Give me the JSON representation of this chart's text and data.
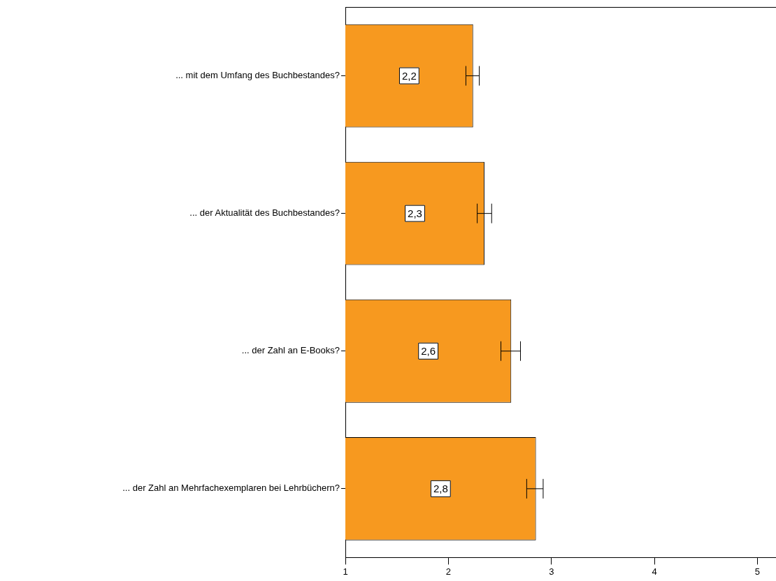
{
  "chart_data": {
    "type": "bar",
    "orientation": "horizontal",
    "categories": [
      "... mit dem Umfang des Buchbestandes?",
      "... der Aktualität des Buchbestandes?",
      "... der Zahl an E-Books?",
      "... der Zahl an Mehrfachexemplaren bei Lehrbüchern?"
    ],
    "values": [
      2.24,
      2.35,
      2.61,
      2.85
    ],
    "value_labels": [
      "2,2",
      "2,3",
      "2,6",
      "2,8"
    ],
    "errors": [
      [
        2.17,
        2.3
      ],
      [
        2.28,
        2.42
      ],
      [
        2.51,
        2.7
      ],
      [
        2.76,
        2.92
      ]
    ],
    "color": "#f7991f",
    "xlim": [
      1,
      5.18
    ],
    "xticks": [
      1,
      2,
      3,
      4,
      5
    ],
    "grid": false,
    "legend": false
  }
}
